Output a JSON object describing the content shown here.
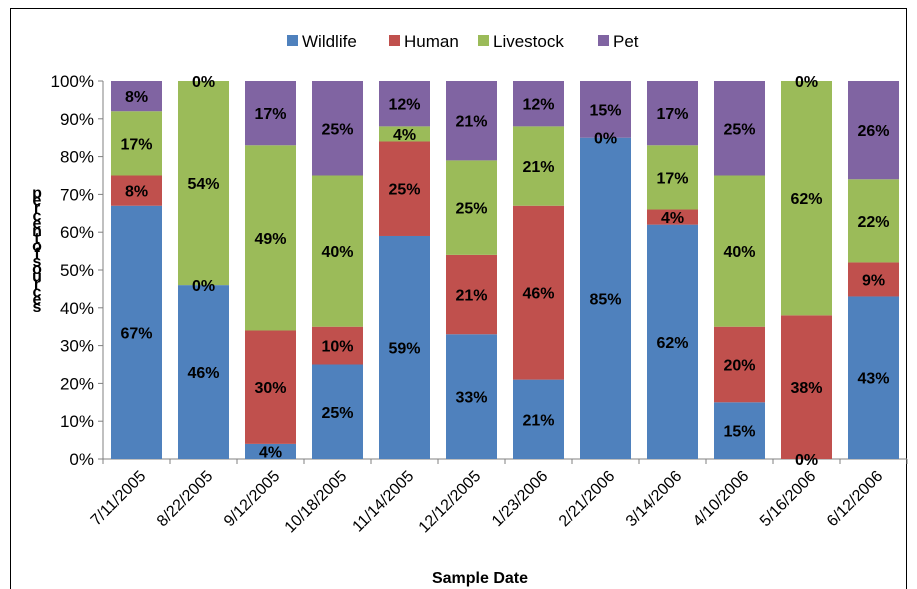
{
  "chart_data": {
    "type": "bar",
    "stacked": true,
    "title": "",
    "xlabel": "Sample Date",
    "ylabel": "percent of sources",
    "ylim": [
      0,
      100
    ],
    "yticks": [
      "0%",
      "10%",
      "20%",
      "30%",
      "40%",
      "50%",
      "60%",
      "70%",
      "80%",
      "90%",
      "100%"
    ],
    "legend_position": "top-center",
    "grid": false,
    "categories": [
      "7/11/2005",
      "8/22/2005",
      "9/12/2005",
      "10/18/2005",
      "11/14/2005",
      "12/12/2005",
      "1/23/2006",
      "2/21/2006",
      "3/14/2006",
      "4/10/2006",
      "5/16/2006",
      "6/12/2006"
    ],
    "series": [
      {
        "name": "Wildlife",
        "color": "#4f81bd",
        "values": [
          67,
          46,
          4,
          25,
          59,
          33,
          21,
          85,
          62,
          15,
          0,
          43
        ]
      },
      {
        "name": "Human",
        "color": "#c0504d",
        "values": [
          8,
          0,
          30,
          10,
          25,
          21,
          46,
          0,
          4,
          20,
          38,
          9
        ]
      },
      {
        "name": "Livestock",
        "color": "#9bbb59",
        "values": [
          17,
          54,
          49,
          40,
          4,
          25,
          21,
          0,
          17,
          40,
          62,
          22
        ]
      },
      {
        "name": "Pet",
        "color": "#8064a2",
        "values": [
          8,
          0,
          17,
          25,
          12,
          21,
          12,
          15,
          17,
          25,
          0,
          26
        ]
      }
    ],
    "data_labels": [
      [
        "67%",
        "8%",
        "17%",
        "8%"
      ],
      [
        "46%",
        "0%",
        "54%",
        "0%"
      ],
      [
        "4%",
        "30%",
        "49%",
        "17%"
      ],
      [
        "25%",
        "10%",
        "40%",
        "25%"
      ],
      [
        "59%",
        "25%",
        "4%",
        "12%"
      ],
      [
        "33%",
        "21%",
        "25%",
        "21%"
      ],
      [
        "21%",
        "46%",
        "21%",
        "12%"
      ],
      [
        "85%",
        "0%",
        "",
        "15%"
      ],
      [
        "62%",
        "4%",
        "17%",
        "17%"
      ],
      [
        "15%",
        "20%",
        "40%",
        "25%"
      ],
      [
        "0%",
        "38%",
        "62%",
        "0%"
      ],
      [
        "43%",
        "9%",
        "22%",
        "26%"
      ]
    ]
  }
}
